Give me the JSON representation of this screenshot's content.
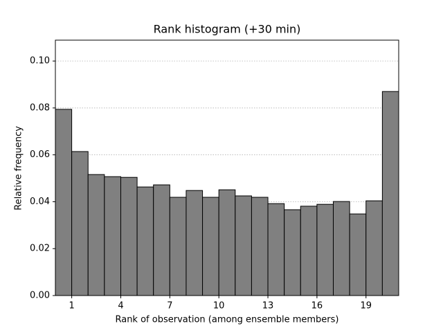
{
  "chart_data": {
    "type": "histogram",
    "title": "Rank histogram (+30 min)",
    "xlabel": "Rank of observation (among ensemble members)",
    "ylabel": "Relative frequency",
    "bins": [
      0,
      1,
      2,
      3,
      4,
      5,
      6,
      7,
      8,
      9,
      10,
      11,
      12,
      13,
      14,
      15,
      16,
      17,
      18,
      19,
      20,
      21
    ],
    "values": [
      0.0794,
      0.0614,
      0.0516,
      0.0507,
      0.0504,
      0.0463,
      0.0472,
      0.0419,
      0.0448,
      0.0419,
      0.0451,
      0.0425,
      0.0419,
      0.0392,
      0.0366,
      0.0381,
      0.0389,
      0.0401,
      0.0348,
      0.0404,
      0.087
    ],
    "color": "#808080",
    "edgecolor": "#000000",
    "xlim": [
      0,
      21
    ],
    "xticks": [
      1,
      4,
      7,
      10,
      13,
      16,
      19
    ],
    "ylim": [
      0,
      0.1089
    ],
    "yticks": [
      {
        "value": 0,
        "label": "0.00"
      },
      {
        "value": 0.02,
        "label": "0.02"
      },
      {
        "value": 0.04,
        "label": "0.04"
      },
      {
        "value": 0.06,
        "label": "0.06"
      },
      {
        "value": 0.08,
        "label": "0.08"
      },
      {
        "value": 0.1,
        "label": "0.10"
      }
    ],
    "grid": true
  }
}
